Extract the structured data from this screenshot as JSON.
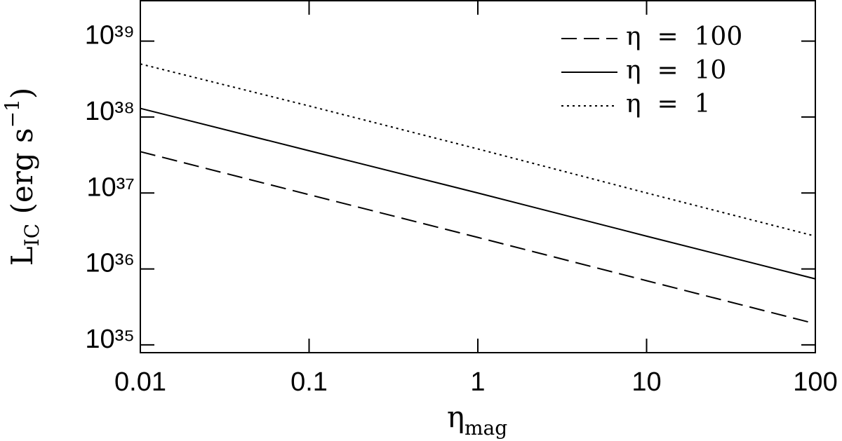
{
  "chart_data": {
    "type": "line",
    "xlabel": [
      "η",
      "mag"
    ],
    "ylabel": [
      "L",
      "IC",
      " (erg s",
      "−1",
      ")"
    ],
    "x": [
      0.01,
      0.1,
      1,
      10,
      100
    ],
    "series": [
      {
        "name": "η  =  100",
        "color": "#000000",
        "dash": "dashed",
        "values": [
          3.5e+37,
          9.5e+36,
          2.6e+36,
          7e+35,
          1.9e+35
        ]
      },
      {
        "name": "η  =  10",
        "color": "#000000",
        "dash": "solid",
        "values": [
          1.3e+38,
          3.6e+37,
          1e+37,
          2.7e+36,
          7.4e+35
        ]
      },
      {
        "name": "η  =  1",
        "color": "#000000",
        "dash": "dotted",
        "values": [
          5e+38,
          1.4e+38,
          3.8e+37,
          1e+37,
          2.7e+36
        ]
      }
    ],
    "xlog": true,
    "ylog": true,
    "xlim": [
      0.01,
      100
    ],
    "xticks": [
      0.01,
      0.1,
      1,
      10,
      100
    ],
    "ylim": [
      7.9e+34,
      3.4e+39
    ],
    "yticks": [
      {
        "value": 1e+35,
        "label": "10³⁵"
      },
      {
        "value": 1e+36,
        "label": "10³⁶"
      },
      {
        "value": 1e+37,
        "label": "10³⁷"
      },
      {
        "value": 1e+38,
        "label": "10³⁸"
      },
      {
        "value": 1e+39,
        "label": "10³⁹"
      }
    ],
    "legend": "upper right"
  }
}
